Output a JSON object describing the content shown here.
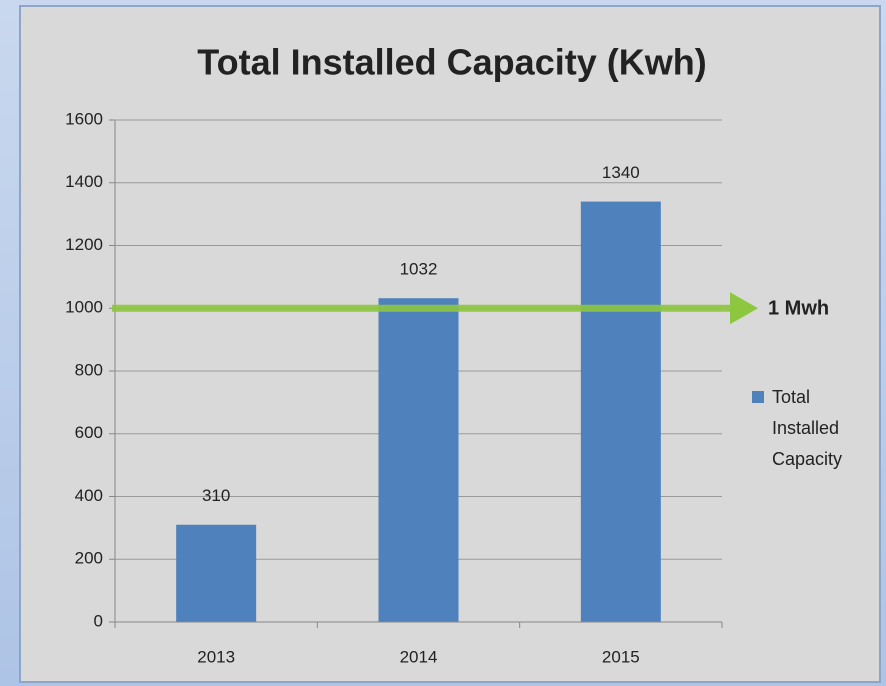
{
  "chart_data": {
    "type": "bar",
    "title": "Total Installed Capacity (Kwh)",
    "categories": [
      "2013",
      "2014",
      "2015"
    ],
    "series": [
      {
        "name": "Total Installed Capacity",
        "color": "#4f81bd",
        "values": [
          310,
          1032,
          1340
        ]
      }
    ],
    "ylim": [
      0,
      1600
    ],
    "yticks": [
      0,
      200,
      400,
      600,
      800,
      1000,
      1200,
      1400,
      1600
    ],
    "grid": true,
    "legend": "right",
    "annotations": [
      {
        "text": "1 Mwh",
        "y": 1000,
        "color": "#8dc63f"
      }
    ]
  }
}
